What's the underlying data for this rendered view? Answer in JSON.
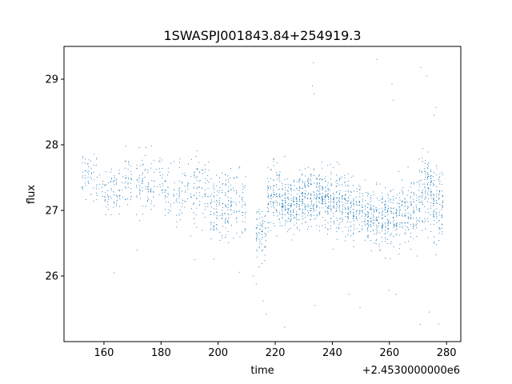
{
  "chart_data": {
    "type": "scatter",
    "title": "1SWASPJ001843.84+254919.3",
    "xlabel": "time",
    "ylabel": "flux",
    "x_offset_label": "+2.4530000000e6",
    "xlim": [
      146,
      285
    ],
    "ylim": [
      25.0,
      29.5
    ],
    "xticks": [
      160,
      180,
      200,
      220,
      240,
      260,
      280
    ],
    "yticks": [
      26,
      27,
      28,
      29
    ],
    "grid": false,
    "marker_color": "#1f77b4",
    "clusters": [
      {
        "x_range": [
          152.0,
          158.0
        ],
        "y_center": 27.5,
        "y_spread": 0.35,
        "n": 55
      },
      {
        "x_range": [
          158.0,
          166.0
        ],
        "y_center": 27.3,
        "y_spread": 0.35,
        "n": 75
      },
      {
        "x_range": [
          166.0,
          170.0
        ],
        "y_center": 27.45,
        "y_spread": 0.35,
        "n": 40
      },
      {
        "x_range": [
          171.0,
          180.0
        ],
        "y_center": 27.4,
        "y_spread": 0.4,
        "n": 95
      },
      {
        "x_range": [
          180.0,
          190.0
        ],
        "y_center": 27.3,
        "y_spread": 0.4,
        "n": 95
      },
      {
        "x_range": [
          190.0,
          197.0
        ],
        "y_center": 27.3,
        "y_spread": 0.4,
        "n": 85
      },
      {
        "x_range": [
          197.0,
          202.0
        ],
        "y_center": 27.0,
        "y_spread": 0.45,
        "n": 85
      },
      {
        "x_range": [
          202.0,
          210.0
        ],
        "y_center": 27.1,
        "y_spread": 0.45,
        "n": 120
      },
      {
        "x_range": [
          213.0,
          217.0
        ],
        "y_center": 26.6,
        "y_spread": 0.4,
        "n": 70
      },
      {
        "x_range": [
          217.0,
          222.0
        ],
        "y_center": 27.2,
        "y_spread": 0.4,
        "n": 120
      },
      {
        "x_range": [
          222.0,
          228.0
        ],
        "y_center": 27.1,
        "y_spread": 0.35,
        "n": 170
      },
      {
        "x_range": [
          228.0,
          235.0
        ],
        "y_center": 27.2,
        "y_spread": 0.35,
        "n": 190
      },
      {
        "x_range": [
          235.0,
          240.0
        ],
        "y_center": 27.2,
        "y_spread": 0.35,
        "n": 150
      },
      {
        "x_range": [
          240.0,
          246.0
        ],
        "y_center": 27.1,
        "y_spread": 0.4,
        "n": 150
      },
      {
        "x_range": [
          246.0,
          252.0
        ],
        "y_center": 27.0,
        "y_spread": 0.35,
        "n": 120
      },
      {
        "x_range": [
          252.0,
          258.0
        ],
        "y_center": 26.9,
        "y_spread": 0.35,
        "n": 150
      },
      {
        "x_range": [
          258.0,
          264.0
        ],
        "y_center": 26.9,
        "y_spread": 0.4,
        "n": 140
      },
      {
        "x_range": [
          264.0,
          270.0
        ],
        "y_center": 27.0,
        "y_spread": 0.4,
        "n": 120
      },
      {
        "x_range": [
          270.0,
          275.0
        ],
        "y_center": 27.3,
        "y_spread": 0.45,
        "n": 130
      },
      {
        "x_range": [
          275.0,
          279.0
        ],
        "y_center": 27.1,
        "y_spread": 0.5,
        "n": 100
      }
    ],
    "outliers": [
      {
        "x": 255.6,
        "y": 29.3
      },
      {
        "x": 271.0,
        "y": 29.18
      },
      {
        "x": 273.0,
        "y": 29.05
      },
      {
        "x": 233.4,
        "y": 29.25
      },
      {
        "x": 260.9,
        "y": 28.92
      },
      {
        "x": 261.3,
        "y": 28.68
      },
      {
        "x": 233.0,
        "y": 28.9
      },
      {
        "x": 233.6,
        "y": 28.78
      },
      {
        "x": 212.3,
        "y": 26.0
      },
      {
        "x": 215.8,
        "y": 25.62
      },
      {
        "x": 216.9,
        "y": 25.42
      },
      {
        "x": 233.9,
        "y": 25.55
      },
      {
        "x": 249.7,
        "y": 25.52
      },
      {
        "x": 245.8,
        "y": 25.72
      },
      {
        "x": 270.8,
        "y": 25.26
      },
      {
        "x": 277.3,
        "y": 25.27
      },
      {
        "x": 274.0,
        "y": 25.45
      },
      {
        "x": 163.5,
        "y": 26.05
      },
      {
        "x": 191.8,
        "y": 26.25
      },
      {
        "x": 223.3,
        "y": 25.22
      },
      {
        "x": 259.8,
        "y": 25.78
      },
      {
        "x": 262.3,
        "y": 25.72
      },
      {
        "x": 167.6,
        "y": 27.98
      },
      {
        "x": 276.4,
        "y": 28.57
      },
      {
        "x": 275.6,
        "y": 28.45
      }
    ]
  }
}
